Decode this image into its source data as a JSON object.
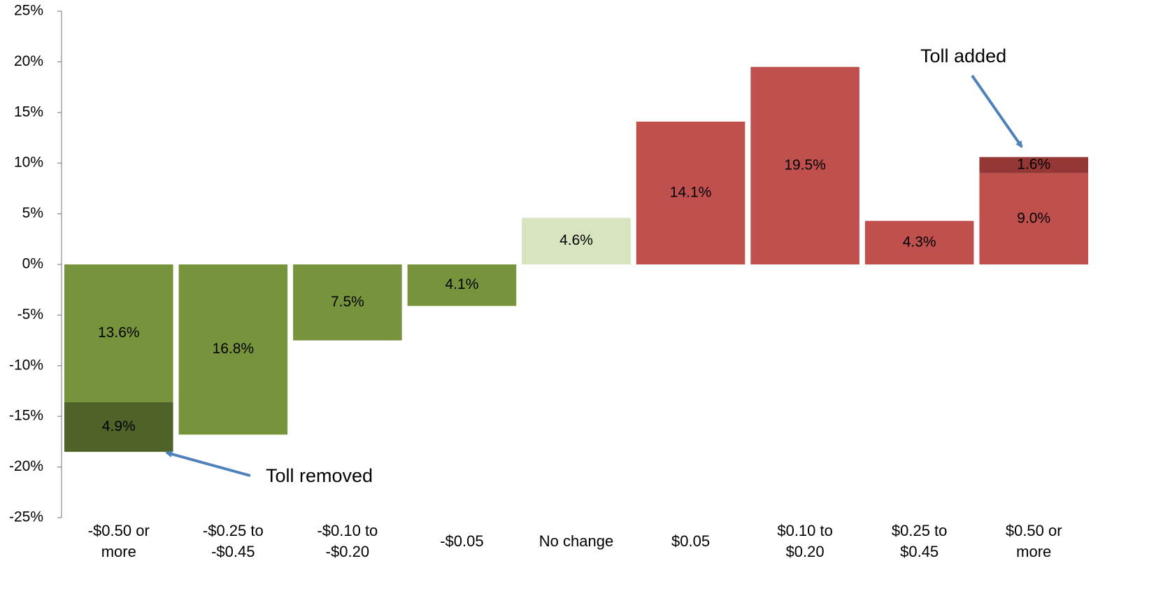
{
  "chart_data": {
    "type": "bar",
    "stacked": true,
    "categories": [
      "-$0.50 or\nmore",
      "-$0.25 to\n-$0.45",
      "-$0.10 to\n-$0.20",
      "-$0.05",
      "No change",
      "$0.05",
      "$0.10 to\n$0.20",
      "$0.25 to\n$0.45",
      "$0.50 or\nmore"
    ],
    "series": [
      {
        "colors": [
          "#77933c",
          "#77933c",
          "#77933c",
          "#77933c",
          "#d7e4bd",
          "#c0504d",
          "#c0504d",
          "#c0504d",
          "#c0504d"
        ],
        "values": [
          -13.6,
          -16.8,
          -7.5,
          -4.1,
          4.6,
          14.1,
          19.5,
          4.3,
          9.0
        ],
        "value_labels": [
          "13.6%",
          "16.8%",
          "7.5%",
          "4.1%",
          "4.6%",
          "14.1%",
          "19.5%",
          "4.3%",
          "9.0%"
        ]
      },
      {
        "colors": [
          "#4f6228",
          null,
          null,
          null,
          null,
          null,
          null,
          null,
          "#953735"
        ],
        "values": [
          -4.9,
          null,
          null,
          null,
          null,
          null,
          null,
          null,
          1.6
        ],
        "value_labels": [
          "4.9%",
          null,
          null,
          null,
          null,
          null,
          null,
          null,
          "1.6%"
        ]
      }
    ],
    "ylim": [
      -25,
      25
    ],
    "yticks": [
      {
        "value": -25,
        "label": "-25%"
      },
      {
        "value": -20,
        "label": "-20%"
      },
      {
        "value": -15,
        "label": "-15%"
      },
      {
        "value": -10,
        "label": "-10%"
      },
      {
        "value": -5,
        "label": "-5%"
      },
      {
        "value": 0,
        "label": "0%"
      },
      {
        "value": 5,
        "label": "5%"
      },
      {
        "value": 10,
        "label": "10%"
      },
      {
        "value": 15,
        "label": "15%"
      },
      {
        "value": 20,
        "label": "20%"
      },
      {
        "value": 25,
        "label": "25%"
      }
    ],
    "annotations": [
      {
        "text": "Toll removed"
      },
      {
        "text": "Toll added"
      }
    ],
    "grid": false
  }
}
